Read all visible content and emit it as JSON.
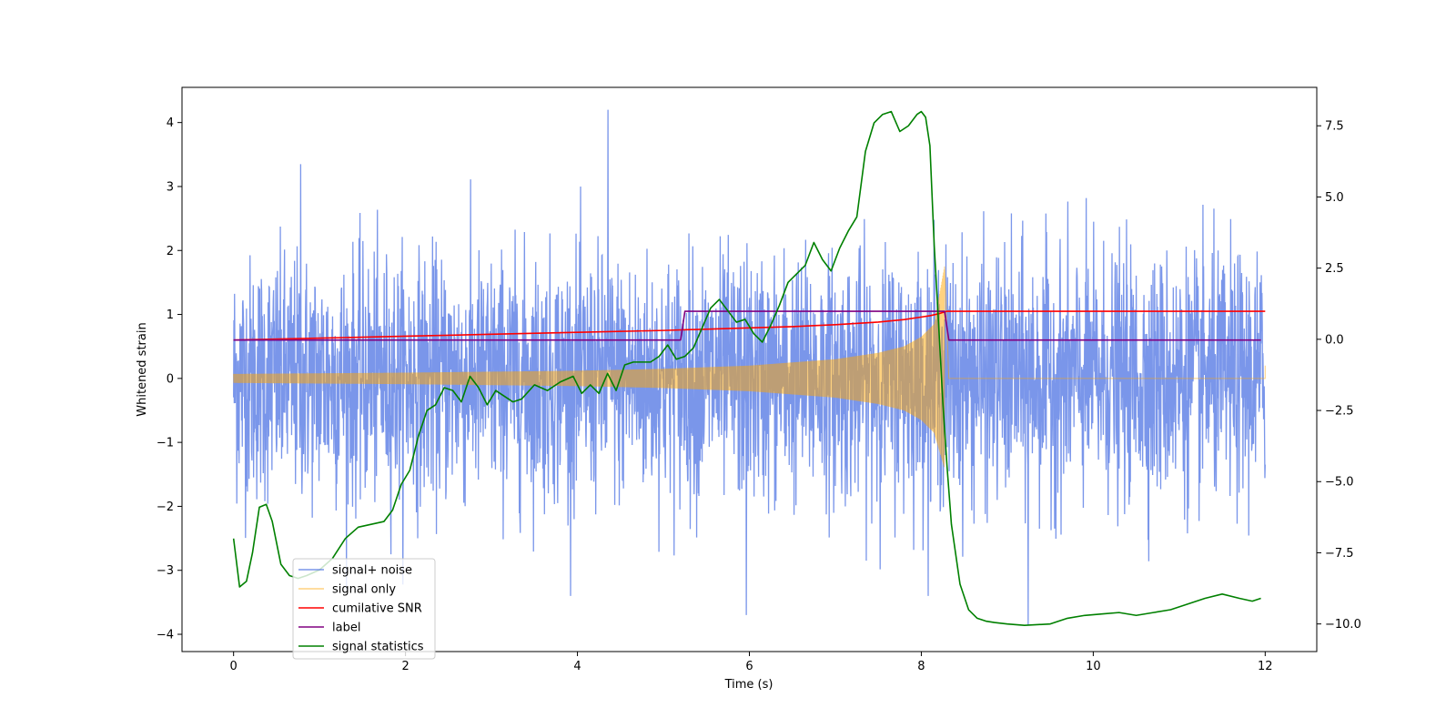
{
  "chart_data": {
    "type": "line",
    "title": "",
    "xlabel": "Time (s)",
    "ylabel": "Whitened strain",
    "ylabel_right": "",
    "xlim": [
      -0.6,
      12.6
    ],
    "ylim": [
      -4.27,
      4.55
    ],
    "ylim_right": [
      -10.97,
      8.85
    ],
    "x_ticks": [
      0,
      2,
      4,
      6,
      8,
      10,
      12
    ],
    "x_tick_labels": [
      "0",
      "2",
      "4",
      "6",
      "8",
      "10",
      "12"
    ],
    "y_ticks": [
      -4,
      -3,
      -2,
      -1,
      0,
      1,
      2,
      3,
      4
    ],
    "y_tick_labels": [
      "−4",
      "−3",
      "−2",
      "−1",
      "0",
      "1",
      "2",
      "3",
      "4"
    ],
    "y_right_ticks": [
      -10,
      -7.5,
      -5,
      -2.5,
      0,
      2.5,
      5,
      7.5
    ],
    "y_right_tick_labels": [
      "−10.0",
      "−7.5",
      "−5.0",
      "−2.5",
      "0.0",
      "2.5",
      "5.0",
      "7.5"
    ],
    "legend_position": "lower-left",
    "series": [
      {
        "name": "signal+ noise",
        "color": "#4169e1",
        "alpha": 0.7,
        "axis": "left",
        "kind": "noise",
        "x_range": [
          0,
          12
        ],
        "noise_sigma": 0.95,
        "peak_values": [
          4.2,
          -3.7,
          3.35,
          -3.85
        ]
      },
      {
        "name": "signal only",
        "color": "#ffa500",
        "alpha": 0.5,
        "axis": "left",
        "kind": "chirp",
        "x_range": [
          0,
          12
        ],
        "merger_time": 8.27,
        "envelope": {
          "x": [
            0,
            2,
            4,
            5,
            6,
            7,
            7.5,
            7.8,
            8.0,
            8.15,
            8.27
          ],
          "upper": [
            0.07,
            0.09,
            0.12,
            0.15,
            0.2,
            0.3,
            0.4,
            0.5,
            0.65,
            0.85,
            1.75
          ],
          "lower": [
            -0.07,
            -0.09,
            -0.12,
            -0.15,
            -0.2,
            -0.3,
            -0.4,
            -0.5,
            -0.65,
            -0.85,
            -1.4
          ]
        },
        "post_merger_value": 0.0
      },
      {
        "name": "cumilative SNR",
        "color": "#ff0000",
        "axis": "left",
        "x": [
          0,
          1,
          2,
          3,
          4,
          5,
          6,
          6.5,
          7,
          7.5,
          7.8,
          8.0,
          8.1,
          8.2,
          8.27,
          8.3,
          12
        ],
        "values": [
          0.6,
          0.63,
          0.66,
          0.69,
          0.72,
          0.75,
          0.79,
          0.81,
          0.84,
          0.88,
          0.92,
          0.96,
          0.98,
          1.01,
          1.04,
          1.05,
          1.05
        ]
      },
      {
        "name": "label",
        "color": "#800080",
        "axis": "left",
        "x": [
          0,
          5.2,
          5.25,
          8.27,
          8.32,
          11.95
        ],
        "values": [
          0.6,
          0.6,
          1.05,
          1.05,
          0.6,
          0.6
        ]
      },
      {
        "name": "signal statistics",
        "color": "#008000",
        "axis": "right",
        "x": [
          0,
          0.07,
          0.15,
          0.22,
          0.3,
          0.38,
          0.45,
          0.55,
          0.65,
          0.75,
          0.85,
          1.0,
          1.15,
          1.3,
          1.45,
          1.6,
          1.75,
          1.85,
          1.95,
          2.05,
          2.15,
          2.25,
          2.35,
          2.45,
          2.55,
          2.65,
          2.75,
          2.85,
          2.95,
          3.05,
          3.15,
          3.25,
          3.35,
          3.5,
          3.65,
          3.8,
          3.95,
          4.05,
          4.15,
          4.25,
          4.35,
          4.45,
          4.55,
          4.65,
          4.75,
          4.85,
          4.95,
          5.05,
          5.15,
          5.25,
          5.35,
          5.45,
          5.55,
          5.65,
          5.75,
          5.85,
          5.95,
          6.05,
          6.15,
          6.25,
          6.35,
          6.45,
          6.55,
          6.65,
          6.75,
          6.85,
          6.95,
          7.05,
          7.15,
          7.25,
          7.35,
          7.45,
          7.55,
          7.65,
          7.75,
          7.85,
          7.95,
          8.0,
          8.05,
          8.1,
          8.15,
          8.2,
          8.25,
          8.3,
          8.35,
          8.45,
          8.55,
          8.65,
          8.75,
          8.85,
          9.0,
          9.2,
          9.5,
          9.7,
          9.9,
          10.1,
          10.3,
          10.5,
          10.7,
          10.9,
          11.1,
          11.3,
          11.5,
          11.7,
          11.85,
          11.95
        ],
        "values": [
          -7.0,
          -8.7,
          -8.5,
          -7.5,
          -5.9,
          -5.8,
          -6.4,
          -7.9,
          -8.3,
          -8.4,
          -8.3,
          -8.1,
          -7.7,
          -7.0,
          -6.6,
          -6.5,
          -6.4,
          -6.0,
          -5.1,
          -4.6,
          -3.4,
          -2.5,
          -2.3,
          -1.7,
          -1.8,
          -2.2,
          -1.3,
          -1.7,
          -2.3,
          -1.8,
          -2.0,
          -2.2,
          -2.1,
          -1.6,
          -1.8,
          -1.5,
          -1.3,
          -1.9,
          -1.6,
          -1.9,
          -1.2,
          -1.8,
          -0.9,
          -0.8,
          -0.8,
          -0.8,
          -0.6,
          -0.2,
          -0.7,
          -0.6,
          -0.3,
          0.4,
          1.1,
          1.4,
          1.0,
          0.6,
          0.7,
          0.2,
          -0.1,
          0.5,
          1.2,
          2.0,
          2.3,
          2.6,
          3.4,
          2.8,
          2.4,
          3.2,
          3.8,
          4.3,
          6.6,
          7.6,
          7.9,
          8.0,
          7.3,
          7.5,
          7.9,
          8.0,
          7.8,
          6.8,
          3.3,
          0.6,
          -2.2,
          -4.5,
          -6.5,
          -8.6,
          -9.5,
          -9.8,
          -9.9,
          -9.95,
          -10.0,
          -10.05,
          -10.0,
          -9.8,
          -9.7,
          -9.65,
          -9.6,
          -9.7,
          -9.6,
          -9.5,
          -9.3,
          -9.1,
          -8.95,
          -9.1,
          -9.2,
          -9.1
        ]
      }
    ]
  }
}
